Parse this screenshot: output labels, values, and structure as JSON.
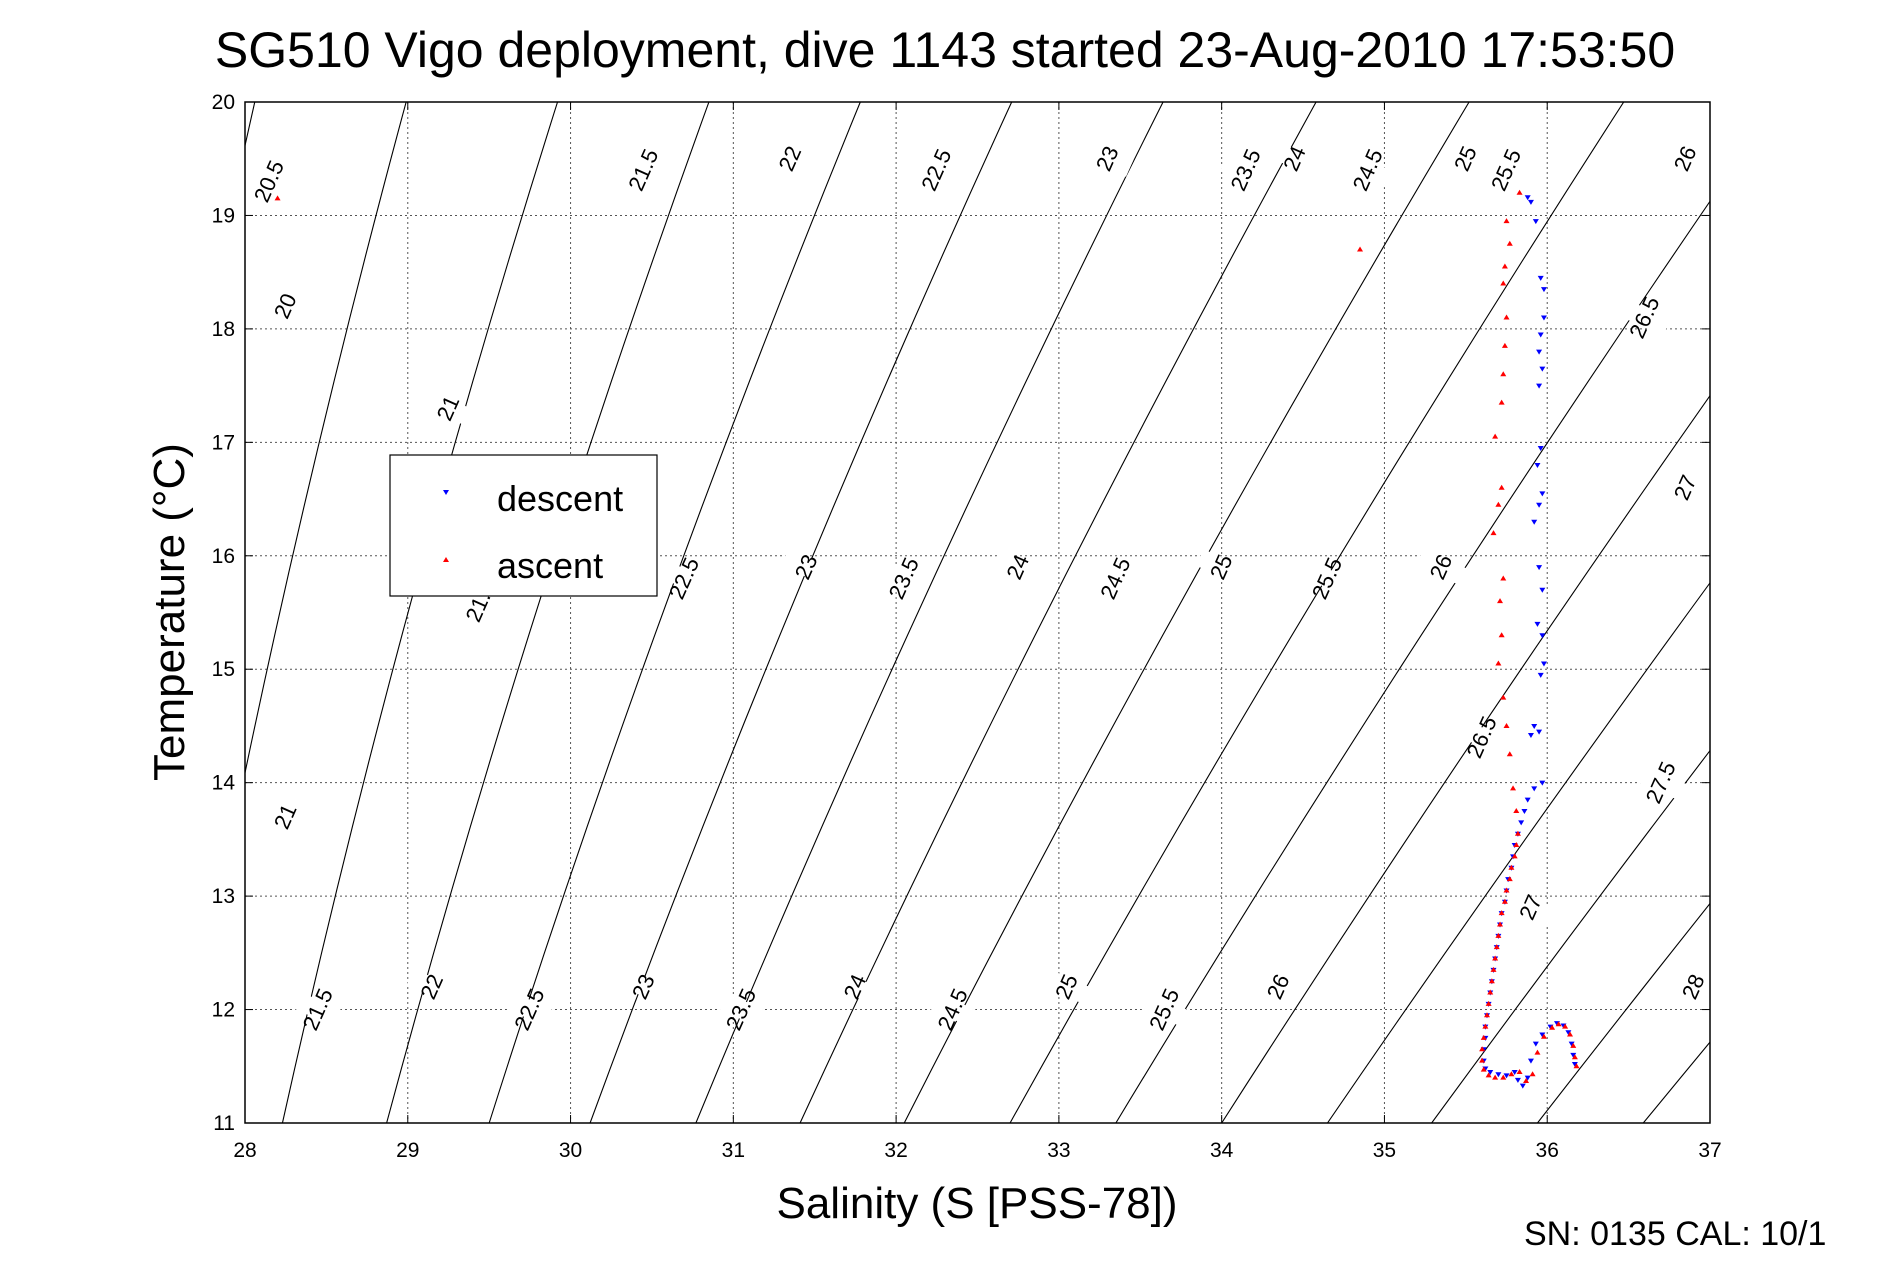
{
  "chart_data": {
    "type": "scatter",
    "title": "SG510 Vigo deployment, dive 1143 started 23-Aug-2010 17:53:50",
    "xlabel": "Salinity (S [PSS-78])",
    "ylabel": "Temperature (°C)",
    "xlim": [
      28,
      37
    ],
    "ylim": [
      11,
      20
    ],
    "xticks": [
      "28",
      "29",
      "30",
      "31",
      "32",
      "33",
      "34",
      "35",
      "36",
      "37"
    ],
    "yticks": [
      "11",
      "12",
      "13",
      "14",
      "15",
      "16",
      "17",
      "18",
      "19",
      "20"
    ],
    "grid": true,
    "legend_position": "upper-left",
    "footer": "SN: 0135  CAL: 10/1",
    "contours": {
      "levels": [
        20,
        20.5,
        21,
        21.5,
        22,
        22.5,
        23,
        23.5,
        24,
        24.5,
        25,
        25.5,
        26,
        26.5,
        27,
        27.5,
        28
      ],
      "labels": [
        {
          "text": "20.5",
          "s": 28.15,
          "t": 19.3
        },
        {
          "text": "21.5",
          "s": 30.45,
          "t": 19.4
        },
        {
          "text": "22",
          "s": 31.35,
          "t": 19.5
        },
        {
          "text": "22.5",
          "s": 32.25,
          "t": 19.4
        },
        {
          "text": "23",
          "s": 33.3,
          "t": 19.5
        },
        {
          "text": "23.5",
          "s": 34.15,
          "t": 19.4
        },
        {
          "text": "24",
          "s": 34.45,
          "t": 19.5
        },
        {
          "text": "24.5",
          "s": 34.9,
          "t": 19.4
        },
        {
          "text": "25",
          "s": 35.5,
          "t": 19.5
        },
        {
          "text": "25.5",
          "s": 35.75,
          "t": 19.4
        },
        {
          "text": "26",
          "s": 36.85,
          "t": 19.5
        },
        {
          "text": "20",
          "s": 28.25,
          "t": 18.2
        },
        {
          "text": "26.5",
          "s": 36.6,
          "t": 18.1
        },
        {
          "text": "21",
          "s": 29.25,
          "t": 17.3
        },
        {
          "text": "27",
          "s": 36.85,
          "t": 16.6
        },
        {
          "text": "21.5",
          "s": 29.45,
          "t": 15.6
        },
        {
          "text": "22.5",
          "s": 30.7,
          "t": 15.8
        },
        {
          "text": "23",
          "s": 31.45,
          "t": 15.9
        },
        {
          "text": "23.5",
          "s": 32.05,
          "t": 15.8
        },
        {
          "text": "24",
          "s": 32.75,
          "t": 15.9
        },
        {
          "text": "24.5",
          "s": 33.35,
          "t": 15.8
        },
        {
          "text": "25",
          "s": 34.0,
          "t": 15.9
        },
        {
          "text": "25.5",
          "s": 34.65,
          "t": 15.8
        },
        {
          "text": "26",
          "s": 35.35,
          "t": 15.9
        },
        {
          "text": "26.5",
          "s": 35.6,
          "t": 14.4
        },
        {
          "text": "27.5",
          "s": 36.7,
          "t": 14.0
        },
        {
          "text": "21",
          "s": 28.25,
          "t": 13.7
        },
        {
          "text": "27",
          "s": 35.9,
          "t": 12.9
        },
        {
          "text": "21.5",
          "s": 28.45,
          "t": 12.0
        },
        {
          "text": "22",
          "s": 29.15,
          "t": 12.2
        },
        {
          "text": "22.5",
          "s": 29.75,
          "t": 12.0
        },
        {
          "text": "23",
          "s": 30.45,
          "t": 12.2
        },
        {
          "text": "23.5",
          "s": 31.05,
          "t": 12.0
        },
        {
          "text": "24",
          "s": 31.75,
          "t": 12.2
        },
        {
          "text": "24.5",
          "s": 32.35,
          "t": 12.0
        },
        {
          "text": "25",
          "s": 33.05,
          "t": 12.2
        },
        {
          "text": "25.5",
          "s": 33.65,
          "t": 12.0
        },
        {
          "text": "26",
          "s": 34.35,
          "t": 12.2
        },
        {
          "text": "28",
          "s": 36.9,
          "t": 12.2
        }
      ]
    },
    "series": [
      {
        "name": "descent",
        "color": "#0000ff",
        "marker": "triangle-down",
        "points": [
          [
            35.88,
            19.16
          ],
          [
            35.9,
            19.12
          ],
          [
            35.93,
            18.95
          ],
          [
            35.96,
            18.45
          ],
          [
            35.98,
            18.35
          ],
          [
            35.98,
            18.1
          ],
          [
            35.96,
            17.95
          ],
          [
            35.95,
            17.8
          ],
          [
            35.97,
            17.65
          ],
          [
            35.95,
            17.5
          ],
          [
            35.96,
            16.95
          ],
          [
            35.94,
            16.8
          ],
          [
            35.97,
            16.55
          ],
          [
            35.95,
            16.45
          ],
          [
            35.92,
            16.3
          ],
          [
            35.95,
            15.9
          ],
          [
            35.97,
            15.7
          ],
          [
            35.94,
            15.4
          ],
          [
            35.97,
            15.3
          ],
          [
            35.98,
            15.05
          ],
          [
            35.96,
            14.95
          ],
          [
            35.92,
            14.5
          ],
          [
            35.9,
            14.42
          ],
          [
            35.95,
            14.45
          ],
          [
            35.97,
            14.0
          ],
          [
            35.92,
            13.95
          ],
          [
            35.88,
            13.85
          ],
          [
            35.86,
            13.75
          ],
          [
            35.84,
            13.65
          ],
          [
            35.82,
            13.55
          ],
          [
            35.8,
            13.45
          ],
          [
            35.79,
            13.35
          ],
          [
            35.78,
            13.25
          ],
          [
            35.76,
            13.15
          ],
          [
            35.75,
            13.05
          ],
          [
            35.74,
            12.95
          ],
          [
            35.72,
            12.85
          ],
          [
            35.71,
            12.75
          ],
          [
            35.7,
            12.65
          ],
          [
            35.69,
            12.55
          ],
          [
            35.68,
            12.45
          ],
          [
            35.67,
            12.35
          ],
          [
            35.66,
            12.25
          ],
          [
            35.65,
            12.15
          ],
          [
            35.64,
            12.05
          ],
          [
            35.63,
            11.95
          ],
          [
            35.62,
            11.85
          ],
          [
            35.62,
            11.75
          ],
          [
            35.61,
            11.65
          ],
          [
            35.61,
            11.55
          ],
          [
            35.62,
            11.48
          ],
          [
            35.65,
            11.45
          ],
          [
            35.7,
            11.43
          ],
          [
            35.75,
            11.42
          ],
          [
            35.8,
            11.45
          ],
          [
            35.82,
            11.38
          ],
          [
            35.85,
            11.33
          ],
          [
            35.88,
            11.4
          ],
          [
            35.9,
            11.55
          ],
          [
            35.93,
            11.7
          ],
          [
            35.97,
            11.78
          ],
          [
            36.02,
            11.85
          ],
          [
            36.06,
            11.88
          ],
          [
            36.1,
            11.86
          ],
          [
            36.13,
            11.8
          ],
          [
            36.15,
            11.7
          ],
          [
            36.16,
            11.6
          ],
          [
            36.17,
            11.52
          ]
        ]
      },
      {
        "name": "ascent",
        "color": "#ff0000",
        "marker": "triangle-up",
        "points": [
          [
            28.2,
            19.15
          ],
          [
            34.85,
            18.7
          ],
          [
            35.83,
            19.2
          ],
          [
            35.75,
            18.95
          ],
          [
            35.77,
            18.75
          ],
          [
            35.74,
            18.55
          ],
          [
            35.73,
            18.4
          ],
          [
            35.75,
            18.1
          ],
          [
            35.74,
            17.85
          ],
          [
            35.73,
            17.6
          ],
          [
            35.72,
            17.35
          ],
          [
            35.68,
            17.05
          ],
          [
            35.72,
            16.6
          ],
          [
            35.7,
            16.45
          ],
          [
            35.67,
            16.2
          ],
          [
            35.73,
            15.8
          ],
          [
            35.71,
            15.6
          ],
          [
            35.72,
            15.3
          ],
          [
            35.7,
            15.05
          ],
          [
            35.73,
            14.75
          ],
          [
            35.75,
            14.5
          ],
          [
            35.77,
            14.25
          ],
          [
            35.79,
            13.95
          ],
          [
            35.81,
            13.75
          ],
          [
            35.82,
            13.55
          ],
          [
            35.81,
            13.45
          ],
          [
            35.8,
            13.35
          ],
          [
            35.78,
            13.25
          ],
          [
            35.77,
            13.15
          ],
          [
            35.75,
            13.05
          ],
          [
            35.74,
            12.95
          ],
          [
            35.72,
            12.85
          ],
          [
            35.71,
            12.75
          ],
          [
            35.7,
            12.65
          ],
          [
            35.69,
            12.55
          ],
          [
            35.68,
            12.45
          ],
          [
            35.67,
            12.35
          ],
          [
            35.66,
            12.25
          ],
          [
            35.65,
            12.15
          ],
          [
            35.64,
            12.05
          ],
          [
            35.63,
            11.95
          ],
          [
            35.62,
            11.85
          ],
          [
            35.61,
            11.75
          ],
          [
            35.6,
            11.65
          ],
          [
            35.6,
            11.55
          ],
          [
            35.61,
            11.47
          ],
          [
            35.64,
            11.42
          ],
          [
            35.68,
            11.4
          ],
          [
            35.73,
            11.4
          ],
          [
            35.78,
            11.43
          ],
          [
            35.83,
            11.45
          ],
          [
            35.87,
            11.37
          ],
          [
            35.91,
            11.43
          ],
          [
            35.94,
            11.62
          ],
          [
            35.98,
            11.76
          ],
          [
            36.03,
            11.84
          ],
          [
            36.07,
            11.87
          ],
          [
            36.11,
            11.85
          ],
          [
            36.14,
            11.78
          ],
          [
            36.16,
            11.68
          ],
          [
            36.17,
            11.58
          ],
          [
            36.18,
            11.5
          ]
        ]
      }
    ]
  }
}
